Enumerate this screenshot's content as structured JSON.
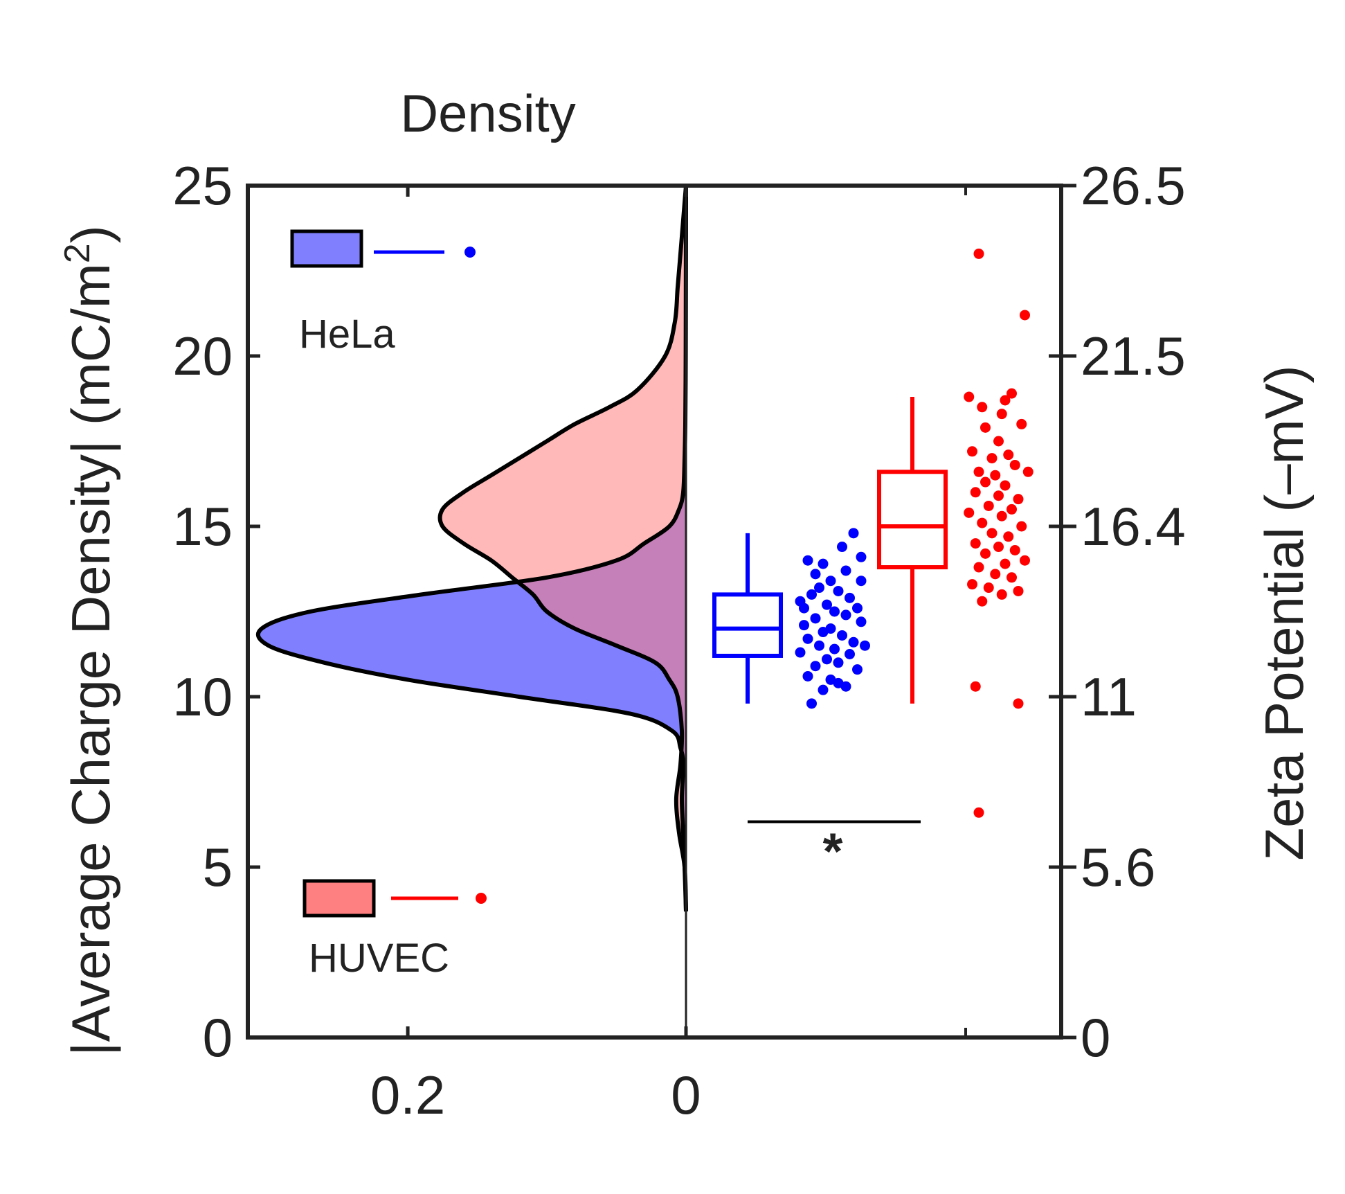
{
  "chart_data": {
    "type": "raincloud",
    "title": "Density",
    "ylabel_left": "|Average Charge Density| (mC/m²)",
    "ylabel_left_text": "|Average Charge Density| (mC/m",
    "ylabel_left_sup": "2",
    "ylabel_left_close": ")",
    "ylabel_right": "Zeta Potential (–mV)",
    "ylim": [
      0,
      25
    ],
    "yticks_left": [
      0,
      5,
      10,
      15,
      20,
      25
    ],
    "yticks_left_labels": [
      "0",
      "5",
      "10",
      "15",
      "20",
      "25"
    ],
    "yticks_right_labels": [
      "0",
      "5.6",
      "11",
      "16.4",
      "21.5",
      "26.5"
    ],
    "density_axis": {
      "xlim": [
        0.315,
        0
      ],
      "ticks": [
        0.2,
        0
      ],
      "tick_labels": [
        "0.2",
        "0"
      ]
    },
    "legend": [
      {
        "name": "HeLa",
        "color": "#0000ff",
        "fill": "#8080ff"
      },
      {
        "name": "HUVEC",
        "color": "#ff0000",
        "fill": "#ff8080"
      }
    ],
    "series": [
      {
        "name": "HeLa",
        "color": "#0000ff",
        "fill": "#8080ff",
        "density": {
          "y": [
            3.7,
            5,
            6,
            7,
            8,
            8.5,
            9,
            9.5,
            10,
            10.5,
            11,
            11.5,
            12,
            12.5,
            13,
            13.5,
            14,
            14.5,
            15,
            15.5,
            16,
            17,
            18,
            20,
            22,
            25
          ],
          "density": [
            0,
            0.001,
            0.002,
            0.003,
            0.002,
            0.004,
            0.01,
            0.04,
            0.12,
            0.2,
            0.26,
            0.3,
            0.305,
            0.27,
            0.19,
            0.1,
            0.05,
            0.03,
            0.012,
            0.005,
            0.002,
            0.001,
            0.0005,
            0.0002,
            0.0001,
            0
          ]
        },
        "box": {
          "whisker_low": 9.8,
          "q1": 11.2,
          "median": 12.0,
          "q3": 13.0,
          "whisker_high": 14.8
        },
        "points": [
          [
            0.2,
            14.0
          ],
          [
            0.4,
            13.9
          ],
          [
            0.8,
            14.8
          ],
          [
            0.65,
            14.4
          ],
          [
            0.3,
            13.6
          ],
          [
            0.7,
            13.7
          ],
          [
            0.9,
            14.1
          ],
          [
            0.5,
            13.4
          ],
          [
            0.35,
            13.2
          ],
          [
            0.25,
            13.0
          ],
          [
            0.6,
            13.1
          ],
          [
            0.75,
            12.9
          ],
          [
            0.1,
            12.8
          ],
          [
            0.45,
            12.7
          ],
          [
            0.85,
            12.6
          ],
          [
            0.55,
            12.5
          ],
          [
            0.3,
            12.3
          ],
          [
            0.7,
            12.4
          ],
          [
            0.15,
            12.1
          ],
          [
            0.5,
            12.0
          ],
          [
            0.9,
            12.2
          ],
          [
            0.4,
            11.9
          ],
          [
            0.65,
            11.8
          ],
          [
            0.2,
            11.7
          ],
          [
            0.8,
            11.6
          ],
          [
            0.35,
            11.5
          ],
          [
            0.55,
            11.4
          ],
          [
            0.1,
            11.3
          ],
          [
            0.75,
            11.25
          ],
          [
            0.45,
            11.1
          ],
          [
            0.95,
            11.5
          ],
          [
            0.3,
            10.9
          ],
          [
            0.6,
            11.0
          ],
          [
            0.85,
            10.8
          ],
          [
            0.2,
            10.6
          ],
          [
            0.5,
            10.5
          ],
          [
            0.7,
            10.3
          ],
          [
            0.4,
            10.2
          ],
          [
            0.6,
            10.4
          ],
          [
            0.25,
            9.8
          ],
          [
            0.15,
            12.6
          ],
          [
            0.9,
            13.4
          ]
        ]
      },
      {
        "name": "HUVEC",
        "color": "#ff0000",
        "fill": "#ff8080",
        "density": {
          "y": [
            3.7,
            5,
            6,
            7,
            8,
            9,
            10,
            10.5,
            11,
            11.5,
            12,
            12.5,
            13,
            13.5,
            14,
            14.5,
            15,
            15.5,
            16,
            16.5,
            17,
            17.5,
            18,
            18.5,
            19,
            20,
            21,
            22,
            23,
            24,
            25
          ],
          "density": [
            0,
            0.001,
            0.005,
            0.007,
            0.004,
            0.003,
            0.006,
            0.012,
            0.022,
            0.05,
            0.08,
            0.1,
            0.11,
            0.125,
            0.14,
            0.16,
            0.175,
            0.175,
            0.16,
            0.14,
            0.12,
            0.1,
            0.08,
            0.055,
            0.035,
            0.015,
            0.008,
            0.006,
            0.004,
            0.002,
            0
          ]
        },
        "box": {
          "whisker_low": 9.8,
          "q1": 13.8,
          "median": 15.0,
          "q3": 16.6,
          "whisker_high": 18.8
        },
        "points": [
          [
            0.2,
            23.0
          ],
          [
            0.9,
            21.2
          ],
          [
            0.05,
            18.8
          ],
          [
            0.6,
            18.7
          ],
          [
            0.7,
            18.9
          ],
          [
            0.25,
            18.5
          ],
          [
            0.55,
            18.3
          ],
          [
            0.85,
            18.0
          ],
          [
            0.3,
            17.9
          ],
          [
            0.5,
            17.5
          ],
          [
            0.1,
            17.2
          ],
          [
            0.4,
            17.0
          ],
          [
            0.65,
            17.1
          ],
          [
            0.75,
            16.8
          ],
          [
            0.2,
            16.6
          ],
          [
            0.45,
            16.5
          ],
          [
            0.95,
            16.6
          ],
          [
            0.3,
            16.3
          ],
          [
            0.6,
            16.2
          ],
          [
            0.15,
            16.0
          ],
          [
            0.5,
            15.9
          ],
          [
            0.8,
            15.8
          ],
          [
            0.35,
            15.6
          ],
          [
            0.7,
            15.5
          ],
          [
            0.05,
            15.4
          ],
          [
            0.55,
            15.3
          ],
          [
            0.25,
            15.1
          ],
          [
            0.85,
            15.0
          ],
          [
            0.4,
            14.8
          ],
          [
            0.65,
            14.7
          ],
          [
            0.15,
            14.5
          ],
          [
            0.5,
            14.4
          ],
          [
            0.75,
            14.3
          ],
          [
            0.3,
            14.2
          ],
          [
            0.9,
            14.0
          ],
          [
            0.6,
            13.9
          ],
          [
            0.2,
            13.8
          ],
          [
            0.45,
            13.6
          ],
          [
            0.7,
            13.5
          ],
          [
            0.1,
            13.3
          ],
          [
            0.35,
            13.2
          ],
          [
            0.55,
            13.0
          ],
          [
            0.8,
            13.1
          ],
          [
            0.25,
            12.8
          ],
          [
            0.15,
            10.3
          ],
          [
            0.8,
            9.8
          ],
          [
            0.2,
            6.6
          ]
        ]
      }
    ],
    "significance": {
      "label": "*",
      "y": 5.6
    }
  }
}
